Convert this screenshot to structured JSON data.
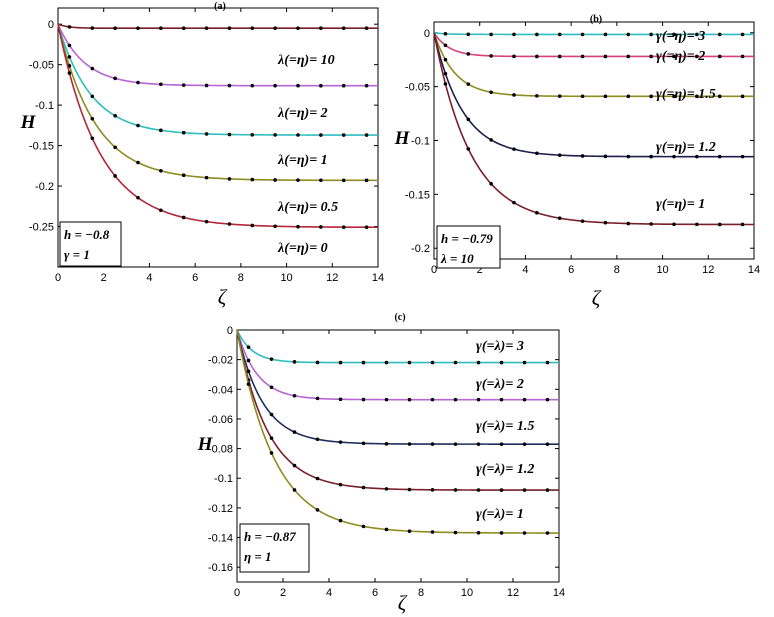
{
  "chart_data": [
    {
      "type": "line",
      "panel_label": "(a)",
      "xlabel": "ζ",
      "ylabel": "H",
      "xlim": [
        0,
        14
      ],
      "ylim": [
        -0.3,
        0.02
      ],
      "x_ticks": [
        "0",
        "2",
        "4",
        "6",
        "8",
        "10",
        "12",
        "14"
      ],
      "y_ticks": [
        "0",
        "-0.05",
        "-0.1",
        "-0.15",
        "-0.2",
        "-0.25"
      ],
      "y_tick_values": [
        0,
        -0.05,
        -0.1,
        -0.15,
        -0.2,
        -0.25
      ],
      "series": [
        {
          "label": "λ(=η)= 10",
          "color": "#7a1f2a",
          "limit": -0.005,
          "rate": 2.2
        },
        {
          "label": "λ(=η)= 2",
          "color": "#b665d6",
          "limit": -0.076,
          "rate": 0.85
        },
        {
          "label": "λ(=η)= 1",
          "color": "#2fbdbd",
          "limit": -0.137,
          "rate": 0.7
        },
        {
          "label": "λ(=η)= 0.5",
          "color": "#8f8c1f",
          "limit": -0.193,
          "rate": 0.62
        },
        {
          "label": "λ(=η)= 0",
          "color": "#b3273a",
          "limit": -0.251,
          "rate": 0.55
        }
      ],
      "params": [
        "h = −0.8",
        "γ = 1"
      ]
    },
    {
      "type": "line",
      "panel_label": "(b)",
      "xlabel": "ζ",
      "ylabel": "H",
      "xlim": [
        0,
        14
      ],
      "ylim": [
        -0.21,
        0.01
      ],
      "x_ticks": [
        "0",
        "2",
        "4",
        "6",
        "8",
        "10",
        "12",
        "14"
      ],
      "y_ticks": [
        "0",
        "-0.05",
        "-0.1",
        "-0.15",
        "-0.2"
      ],
      "y_tick_values": [
        0,
        -0.05,
        -0.1,
        -0.15,
        -0.2
      ],
      "series": [
        {
          "label": "γ(=η)= 3",
          "color": "#2fbdbd",
          "limit": -0.0015,
          "rate": 2.0
        },
        {
          "label": "γ(=η)= 2",
          "color": "#d6407a",
          "limit": -0.022,
          "rate": 1.5
        },
        {
          "label": "γ(=η)= 1.5",
          "color": "#8f8c1f",
          "limit": -0.059,
          "rate": 1.1
        },
        {
          "label": "γ(=η)= 1.2",
          "color": "#1f1f4f",
          "limit": -0.115,
          "rate": 0.8
        },
        {
          "label": "γ(=η)= 1",
          "color": "#7a1f2a",
          "limit": -0.178,
          "rate": 0.62
        }
      ],
      "params": [
        "h = −0.79",
        "λ = 10"
      ]
    },
    {
      "type": "line",
      "panel_label": "(c)",
      "xlabel": "ζ",
      "ylabel": "H",
      "xlim": [
        0,
        14
      ],
      "ylim": [
        -0.17,
        0.0
      ],
      "x_ticks": [
        "0",
        "2",
        "4",
        "6",
        "8",
        "10",
        "12",
        "14"
      ],
      "y_ticks": [
        "0",
        "-0.02",
        "-0.04",
        "-0.06",
        "-0.08",
        "-0.1",
        "-0.12",
        "-0.14",
        "-0.16"
      ],
      "y_tick_values": [
        0,
        -0.02,
        -0.04,
        -0.06,
        -0.08,
        -0.1,
        -0.12,
        -0.14,
        -0.16
      ],
      "series": [
        {
          "label": "γ(=λ)= 3",
          "color": "#2fbdbd",
          "limit": -0.022,
          "rate": 1.5
        },
        {
          "label": "γ(=λ)= 2",
          "color": "#b665d6",
          "limit": -0.047,
          "rate": 1.15
        },
        {
          "label": "γ(=λ)= 1.5",
          "color": "#1f2f5f",
          "limit": -0.077,
          "rate": 0.9
        },
        {
          "label": "γ(=λ)= 1.2",
          "color": "#7a1f2a",
          "limit": -0.108,
          "rate": 0.75
        },
        {
          "label": "γ(=λ)= 1",
          "color": "#8f8c1f",
          "limit": -0.137,
          "rate": 0.62
        }
      ],
      "params": [
        "h = −0.87",
        "η = 1"
      ]
    }
  ]
}
